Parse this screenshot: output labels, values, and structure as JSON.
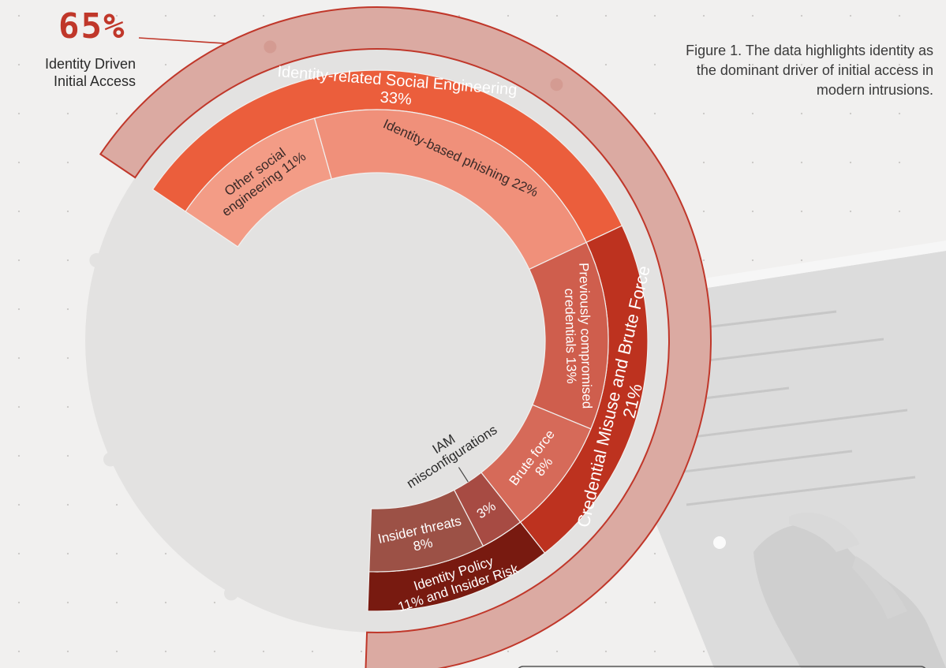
{
  "big_stat": {
    "value": "65%",
    "label_line1": "Identity Driven",
    "label_line2": "Initial Access"
  },
  "caption": "Figure 1. The data highlights identity as the dominant driver of initial access in modern intrusions.",
  "chart_data": {
    "type": "pie",
    "subtype": "sunburst",
    "outer_ring": {
      "name": "",
      "total_value": 65,
      "total_label": "Identity Driven Initial Access",
      "color": "#dbaaa2"
    },
    "middle_ring": [
      {
        "label_lines": [
          "Credential Misuse and Brute Force",
          "21%"
        ],
        "value": 21,
        "color": "#bd321f"
      },
      {
        "label_lines": [
          "Identity Policy",
          "11% and Insider Risk"
        ],
        "value": 11,
        "color": "#781a10"
      },
      {
        "label_lines": [
          "Identity-related Social Engineering",
          "33%"
        ],
        "value": 33,
        "color": "#eb5e3c"
      }
    ],
    "inner_ring": [
      {
        "label_lines": [
          "Previously compromised",
          "credentials 13%"
        ],
        "value": 13,
        "color": "#cf5e4d",
        "parent": 0
      },
      {
        "label_lines": [
          "Brute force",
          "8%"
        ],
        "value": 8,
        "color": "#d66a59",
        "parent": 0
      },
      {
        "label_lines": [
          "3%"
        ],
        "value": 3,
        "color": "#a74b43",
        "parent": 1,
        "callout_lines": [
          "IAM",
          "misconfigurations"
        ]
      },
      {
        "label_lines": [
          "Insider threats",
          "8%"
        ],
        "value": 8,
        "color": "#9c5146",
        "parent": 1
      },
      {
        "label_lines": [
          "Identity-based phishing 22%"
        ],
        "value": 22,
        "color": "#f0907a",
        "parent": 2
      },
      {
        "label_lines": [
          "Other social",
          "engineering 11%"
        ],
        "value": 11,
        "color": "#f39c86",
        "parent": 2
      }
    ],
    "background_disc_color": "#e3e2e1",
    "title": "",
    "legend": "none"
  }
}
